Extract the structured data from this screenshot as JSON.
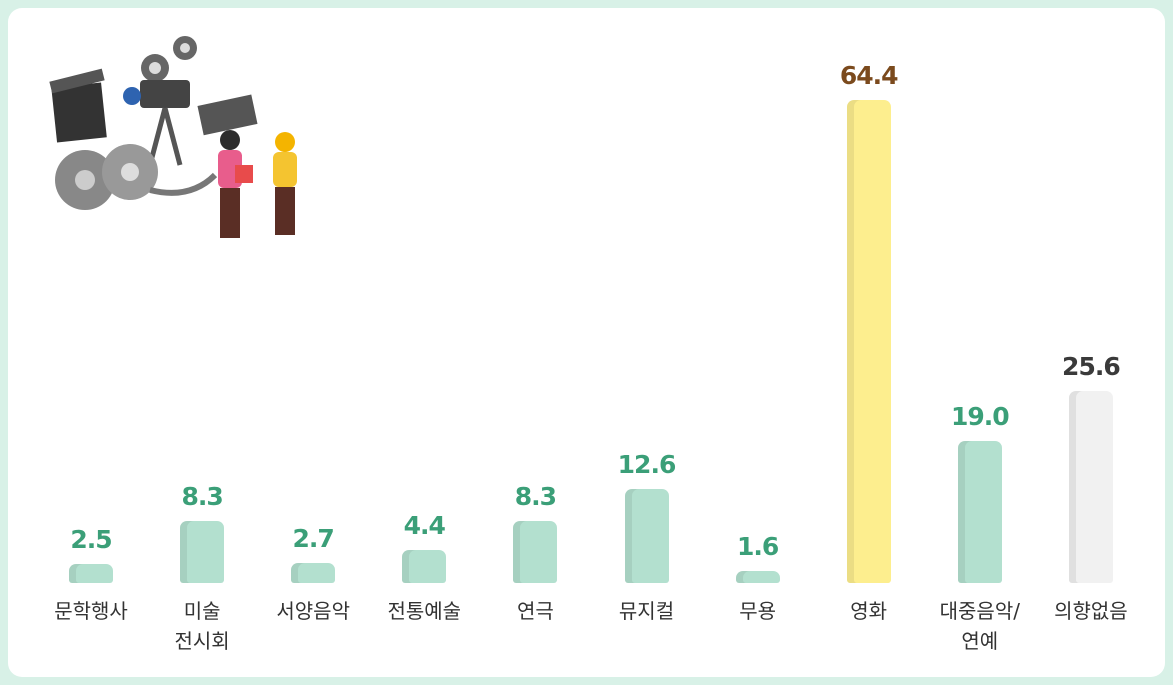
{
  "chart_data": {
    "type": "bar",
    "categories": [
      "문학행사",
      "미술\n전시회",
      "서양음악",
      "전통예술",
      "연극",
      "뮤지컬",
      "무용",
      "영화",
      "대중음악/\n연예",
      "의향없음"
    ],
    "values": [
      2.5,
      8.3,
      2.7,
      4.4,
      8.3,
      12.6,
      1.6,
      64.4,
      19.0,
      25.6
    ],
    "value_labels": [
      "2.5",
      "8.3",
      "2.7",
      "4.4",
      "8.3",
      "12.6",
      "1.6",
      "64.4",
      "19.0",
      "25.6"
    ],
    "colors": [
      "#b3e0cf",
      "#b3e0cf",
      "#b3e0cf",
      "#b3e0cf",
      "#b3e0cf",
      "#b3e0cf",
      "#b3e0cf",
      "#fdee8e",
      "#b3e0cf",
      "#f1f1f1"
    ],
    "label_colors": [
      "#3b9f78",
      "#3b9f78",
      "#3b9f78",
      "#3b9f78",
      "#3b9f78",
      "#3b9f78",
      "#3b9f78",
      "#7b4a1d",
      "#3b9f78",
      "#3a3a3a"
    ]
  }
}
